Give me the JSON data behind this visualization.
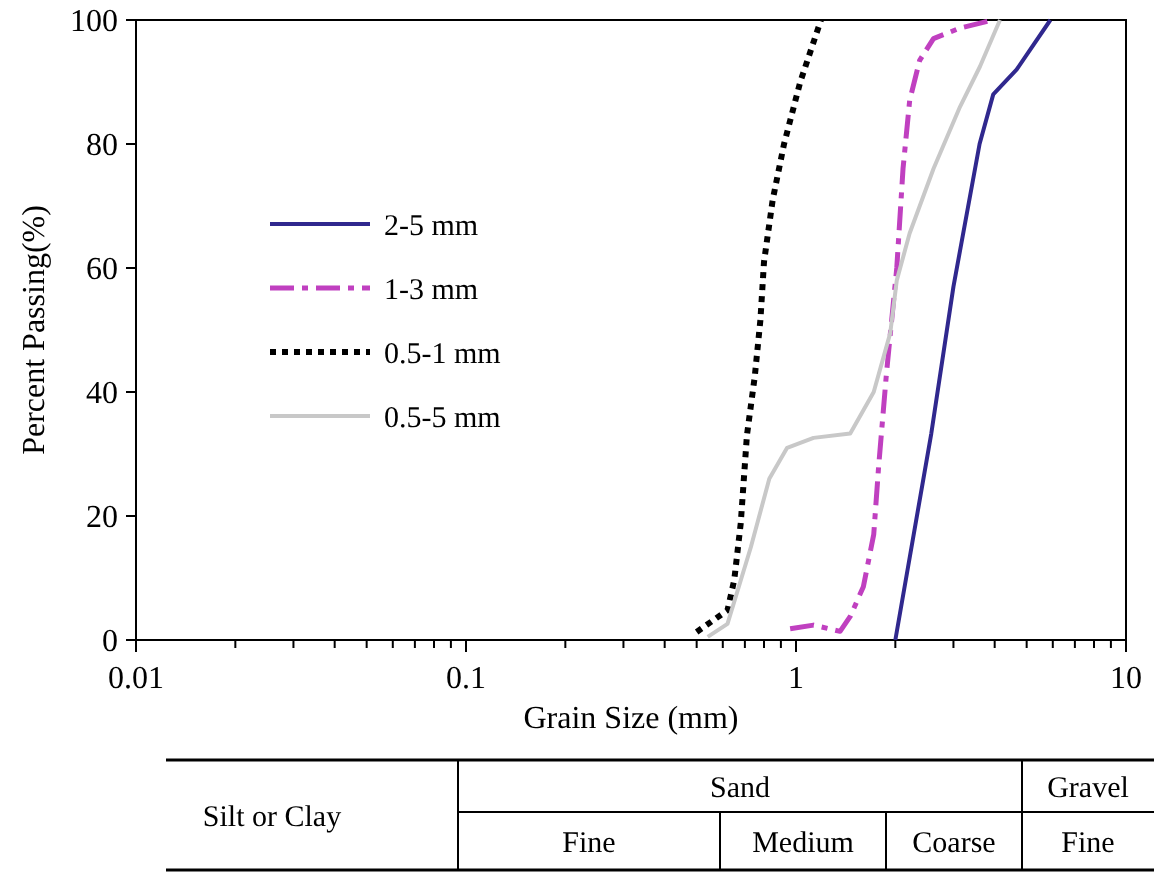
{
  "chart_data": {
    "type": "line",
    "xlabel": "Grain Size (mm)",
    "ylabel": "Percent Passing(%)",
    "log": "x",
    "xlim": [
      0.01,
      10
    ],
    "ylim": [
      0,
      100
    ],
    "xticks": [
      0.01,
      {
        "value": 0.02,
        "label": null
      },
      {
        "value": 0.03,
        "label": null
      },
      {
        "value": 0.04,
        "label": null
      },
      {
        "value": 0.05,
        "label": null
      },
      {
        "value": 0.06,
        "label": null
      },
      {
        "value": 0.07,
        "label": null
      },
      {
        "value": 0.08,
        "label": null
      },
      {
        "value": 0.09,
        "label": null
      },
      0.1,
      {
        "value": 0.2,
        "label": null
      },
      {
        "value": 0.3,
        "label": null
      },
      {
        "value": 0.4,
        "label": null
      },
      {
        "value": 0.5,
        "label": null
      },
      {
        "value": 0.6,
        "label": null
      },
      {
        "value": 0.7,
        "label": null
      },
      {
        "value": 0.8,
        "label": null
      },
      {
        "value": 0.9,
        "label": null
      },
      1,
      {
        "value": 2,
        "label": null
      },
      {
        "value": 3,
        "label": null
      },
      {
        "value": 4,
        "label": null
      },
      {
        "value": 5,
        "label": null
      },
      {
        "value": 6,
        "label": null
      },
      {
        "value": 7,
        "label": null
      },
      {
        "value": 8,
        "label": null
      },
      {
        "value": 9,
        "label": null
      },
      10
    ],
    "yticks": [
      0,
      20,
      40,
      60,
      80,
      100
    ],
    "grid": false,
    "legend": "left",
    "marker": "none",
    "series": [
      {
        "name": "2-5 mm",
        "color": "#30288e",
        "line_style": "solid",
        "x": [
          2.0,
          2.57,
          3.0,
          3.6,
          3.96,
          4.66,
          5.9
        ],
        "values": [
          0,
          33.3,
          57,
          80,
          88,
          92,
          100
        ]
      },
      {
        "name": "1-3 mm",
        "color": "#c040c0",
        "line_style": "dashed",
        "x": [
          0.96,
          1.13,
          1.36,
          1.46,
          1.6,
          1.72,
          1.78,
          1.88,
          2.02,
          2.11,
          2.21,
          2.37,
          2.61,
          3.14,
          3.96
        ],
        "values": [
          1.8,
          2.4,
          1.4,
          3.8,
          8.6,
          17,
          28,
          43,
          60,
          76,
          87,
          93.5,
          97,
          98.7,
          100
        ]
      },
      {
        "name": "0.5-1 mm",
        "color": "#000000",
        "line_style": "dotted",
        "x": [
          0.5,
          0.62,
          0.65,
          0.68,
          0.71,
          0.75,
          0.78,
          0.8,
          0.85,
          0.92,
          1.03,
          1.19
        ],
        "values": [
          1.3,
          4.8,
          9.7,
          18.8,
          33,
          42.5,
          51.6,
          61,
          71,
          80,
          90,
          100
        ]
      },
      {
        "name": "0.5-5 mm",
        "color": "#c8c8c8",
        "line_style": "solid",
        "x": [
          0.54,
          0.62,
          0.73,
          0.83,
          0.94,
          1.13,
          1.46,
          1.72,
          1.93,
          2.02,
          2.21,
          2.61,
          3.14,
          3.61,
          4.15
        ],
        "values": [
          0.5,
          2.6,
          15,
          26,
          31,
          32.6,
          33.3,
          40,
          49.5,
          58,
          65.6,
          76,
          86,
          92.5,
          100
        ]
      }
    ],
    "annotations": [
      "Silt or Clay",
      "Sand",
      "Gravel",
      "Fine",
      "Medium",
      "Coarse",
      "Fine"
    ]
  }
}
